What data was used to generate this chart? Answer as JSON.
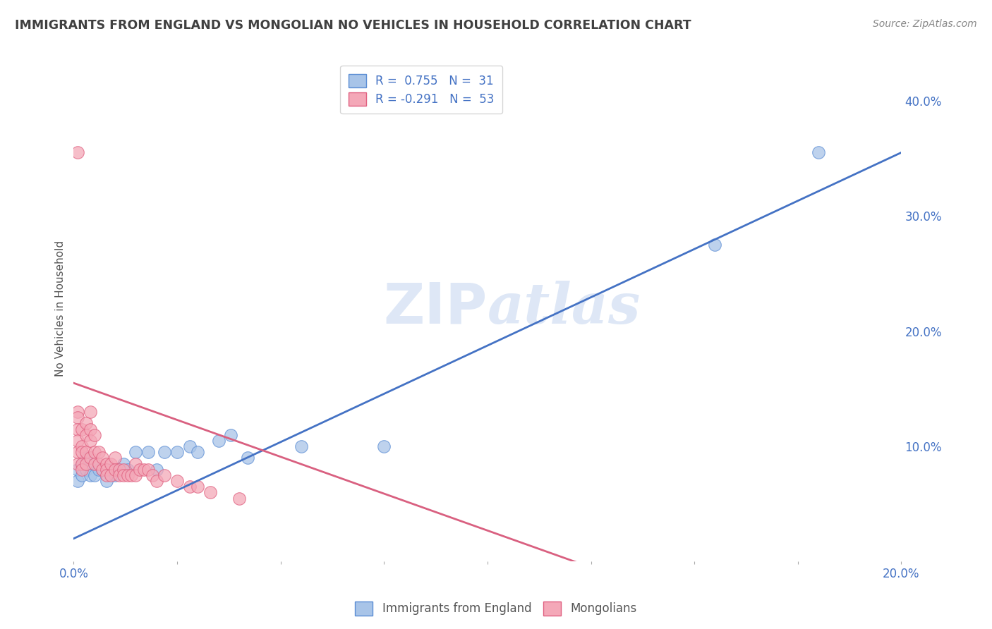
{
  "title": "IMMIGRANTS FROM ENGLAND VS MONGOLIAN NO VEHICLES IN HOUSEHOLD CORRELATION CHART",
  "source": "Source: ZipAtlas.com",
  "ylabel": "No Vehicles in Household",
  "xlim": [
    0.0,
    0.2
  ],
  "ylim": [
    0.0,
    0.44
  ],
  "right_yticks": [
    0.1,
    0.2,
    0.3,
    0.4
  ],
  "right_yticklabels": [
    "10.0%",
    "20.0%",
    "30.0%",
    "40.0%"
  ],
  "xticks": [
    0.0,
    0.025,
    0.05,
    0.075,
    0.1,
    0.125,
    0.15,
    0.175,
    0.2
  ],
  "xticklabels_show": [
    "0.0%",
    "",
    "",
    "",
    "",
    "",
    "",
    "",
    "20.0%"
  ],
  "legend_r1": "R =  0.755",
  "legend_n1": "N =  31",
  "legend_r2": "R = -0.291",
  "legend_n2": "N =  53",
  "blue_color": "#a8c4e8",
  "pink_color": "#f4a8b8",
  "blue_edge_color": "#5b8dd4",
  "pink_edge_color": "#e06080",
  "blue_line_color": "#4472c4",
  "pink_line_color": "#d96080",
  "background_color": "#ffffff",
  "grid_color": "#cccccc",
  "title_color": "#404040",
  "watermark_color": "#c8d8f0",
  "blue_scatter_x": [
    0.001,
    0.001,
    0.002,
    0.002,
    0.003,
    0.003,
    0.004,
    0.005,
    0.005,
    0.006,
    0.007,
    0.008,
    0.009,
    0.01,
    0.011,
    0.012,
    0.013,
    0.015,
    0.018,
    0.02,
    0.022,
    0.025,
    0.028,
    0.03,
    0.035,
    0.038,
    0.042,
    0.055,
    0.075,
    0.155,
    0.18
  ],
  "blue_scatter_y": [
    0.07,
    0.08,
    0.075,
    0.085,
    0.08,
    0.09,
    0.075,
    0.085,
    0.075,
    0.08,
    0.08,
    0.07,
    0.08,
    0.075,
    0.08,
    0.085,
    0.08,
    0.095,
    0.095,
    0.08,
    0.095,
    0.095,
    0.1,
    0.095,
    0.105,
    0.11,
    0.09,
    0.1,
    0.1,
    0.275,
    0.355
  ],
  "pink_scatter_x": [
    0.001,
    0.001,
    0.001,
    0.001,
    0.001,
    0.001,
    0.001,
    0.002,
    0.002,
    0.002,
    0.002,
    0.002,
    0.003,
    0.003,
    0.003,
    0.003,
    0.004,
    0.004,
    0.004,
    0.004,
    0.005,
    0.005,
    0.005,
    0.006,
    0.006,
    0.007,
    0.007,
    0.008,
    0.008,
    0.008,
    0.009,
    0.009,
    0.01,
    0.01,
    0.011,
    0.011,
    0.012,
    0.012,
    0.013,
    0.014,
    0.015,
    0.015,
    0.016,
    0.017,
    0.018,
    0.019,
    0.02,
    0.022,
    0.025,
    0.028,
    0.03,
    0.033,
    0.04
  ],
  "pink_scatter_y": [
    0.355,
    0.13,
    0.125,
    0.115,
    0.105,
    0.095,
    0.085,
    0.115,
    0.1,
    0.095,
    0.085,
    0.08,
    0.12,
    0.11,
    0.095,
    0.085,
    0.13,
    0.115,
    0.105,
    0.09,
    0.11,
    0.095,
    0.085,
    0.095,
    0.085,
    0.09,
    0.08,
    0.085,
    0.08,
    0.075,
    0.085,
    0.075,
    0.09,
    0.08,
    0.08,
    0.075,
    0.08,
    0.075,
    0.075,
    0.075,
    0.085,
    0.075,
    0.08,
    0.08,
    0.08,
    0.075,
    0.07,
    0.075,
    0.07,
    0.065,
    0.065,
    0.06,
    0.055
  ]
}
